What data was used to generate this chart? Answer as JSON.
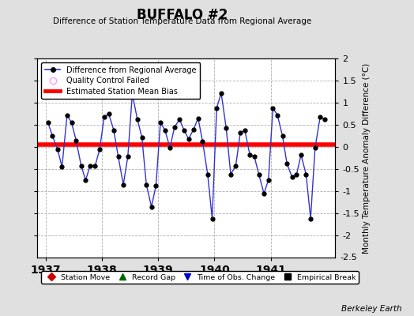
{
  "title": "BUFFALO #2",
  "subtitle": "Difference of Station Temperature Data from Regional Average",
  "ylabel_right": "Monthly Temperature Anomaly Difference (°C)",
  "bias_value": 0.05,
  "ylim": [
    -2.5,
    2.0
  ],
  "yticks": [
    -2.0,
    -1.5,
    -1.0,
    -0.5,
    0.0,
    0.5,
    1.0,
    1.5,
    2.0
  ],
  "ytick_labels": [
    "-2",
    "-1.5",
    "-1",
    "-0.5",
    "0",
    "0.5",
    "1",
    "1.5",
    "2"
  ],
  "x_start_year": 1936.85,
  "x_end_year": 1942.15,
  "xticks": [
    1937,
    1938,
    1939,
    1940,
    1941
  ],
  "background_color": "#e0e0e0",
  "plot_bg_color": "#ffffff",
  "grid_color": "#b0b0b0",
  "line_color": "#3333cc",
  "marker_color": "#000000",
  "bias_color": "#ff0000",
  "watermark": "Berkeley Earth",
  "data_x": [
    1937.04,
    1937.12,
    1937.21,
    1937.29,
    1937.38,
    1937.46,
    1937.54,
    1937.63,
    1937.71,
    1937.79,
    1937.88,
    1937.96,
    1938.04,
    1938.12,
    1938.21,
    1938.29,
    1938.38,
    1938.46,
    1938.54,
    1938.63,
    1938.71,
    1938.79,
    1938.88,
    1938.96,
    1939.04,
    1939.12,
    1939.21,
    1939.29,
    1939.38,
    1939.46,
    1939.54,
    1939.63,
    1939.71,
    1939.79,
    1939.88,
    1939.96,
    1940.04,
    1940.12,
    1940.21,
    1940.29,
    1940.38,
    1940.46,
    1940.54,
    1940.63,
    1940.71,
    1940.79,
    1940.88,
    1940.96,
    1941.04,
    1941.12,
    1941.21,
    1941.29,
    1941.38,
    1941.46,
    1941.54,
    1941.63,
    1941.71,
    1941.79,
    1941.88,
    1941.96
  ],
  "data_y": [
    0.55,
    0.25,
    -0.05,
    -0.45,
    0.72,
    0.55,
    0.15,
    -0.42,
    -0.75,
    -0.42,
    -0.42,
    -0.05,
    0.68,
    0.75,
    0.38,
    -0.22,
    -0.85,
    -0.22,
    1.2,
    0.62,
    0.22,
    -0.85,
    -1.35,
    -0.88,
    0.55,
    0.38,
    -0.02,
    0.45,
    0.62,
    0.38,
    0.18,
    0.4,
    0.65,
    0.12,
    -0.62,
    -1.62,
    0.88,
    1.22,
    0.42,
    -0.62,
    -0.42,
    0.32,
    0.38,
    -0.18,
    -0.22,
    -0.62,
    -1.05,
    -0.75,
    0.88,
    0.72,
    0.25,
    -0.38,
    -0.68,
    -0.62,
    -0.18,
    -0.62,
    -1.62,
    -0.02,
    0.68,
    0.62
  ],
  "legend_items": [
    {
      "label": "Difference from Regional Average",
      "color": "#3333cc",
      "type": "line_marker"
    },
    {
      "label": "Quality Control Failed",
      "color": "#ff99ff",
      "type": "circle_open"
    },
    {
      "label": "Estimated Station Mean Bias",
      "color": "#ff0000",
      "type": "line"
    }
  ],
  "bottom_legend": [
    {
      "label": "Station Move",
      "color": "#cc0000",
      "marker": "D"
    },
    {
      "label": "Record Gap",
      "color": "#006600",
      "marker": "^"
    },
    {
      "label": "Time of Obs. Change",
      "color": "#0000cc",
      "marker": "v"
    },
    {
      "label": "Empirical Break",
      "color": "#000000",
      "marker": "s"
    }
  ]
}
